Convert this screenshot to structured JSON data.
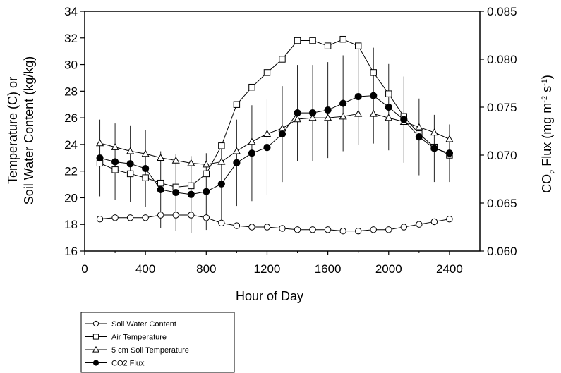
{
  "chart_data": {
    "type": "line",
    "xlabel": "Hour of Day",
    "ylabel_left_line1": "Temperature (C) or",
    "ylabel_left_line2": "Soil Water Content (kg/kg)",
    "ylabel_right": "CO2 Flux (mg m-2 s-1)",
    "xlim": [
      0,
      2600
    ],
    "ylim_left": [
      16,
      34
    ],
    "ylim_right": [
      0.06,
      0.085
    ],
    "x_ticks": [
      0,
      400,
      800,
      1200,
      1600,
      2000,
      2400
    ],
    "x_tick_labels": [
      "0",
      "400",
      "800",
      "1200",
      "1600",
      "2000",
      "2400"
    ],
    "y_left_ticks": [
      16,
      18,
      20,
      22,
      24,
      26,
      28,
      30,
      32,
      34
    ],
    "y_left_tick_labels": [
      "16",
      "18",
      "20",
      "22",
      "24",
      "26",
      "28",
      "30",
      "32",
      "34"
    ],
    "y_right_ticks": [
      0.06,
      0.065,
      0.07,
      0.075,
      0.08,
      0.085
    ],
    "y_right_tick_labels": [
      "0.060",
      "0.065",
      "0.070",
      "0.075",
      "0.080",
      "0.085"
    ],
    "x": [
      100,
      200,
      300,
      400,
      500,
      600,
      700,
      800,
      900,
      1000,
      1100,
      1200,
      1300,
      1400,
      1500,
      1600,
      1700,
      1800,
      1900,
      2000,
      2100,
      2200,
      2300,
      2400
    ],
    "series": [
      {
        "name": "Soil Water Content",
        "marker": "circle-open",
        "axis": "left",
        "values": [
          18.4,
          18.5,
          18.5,
          18.5,
          18.7,
          18.7,
          18.7,
          18.5,
          18.1,
          17.9,
          17.8,
          17.8,
          17.7,
          17.6,
          17.6,
          17.6,
          17.5,
          17.5,
          17.6,
          17.6,
          17.8,
          18.0,
          18.2,
          18.4
        ]
      },
      {
        "name": "Air Temperature",
        "marker": "square-open",
        "axis": "left",
        "values": [
          22.6,
          22.1,
          21.8,
          21.5,
          21.1,
          20.8,
          20.9,
          21.8,
          23.9,
          27.0,
          28.3,
          29.4,
          30.4,
          31.8,
          31.8,
          31.4,
          31.9,
          31.4,
          29.4,
          27.8,
          26.1,
          24.8,
          23.8,
          23.2
        ]
      },
      {
        "name": "5 cm Soil Temperature",
        "marker": "triangle-open",
        "axis": "left",
        "values": [
          24.1,
          23.8,
          23.5,
          23.3,
          23.0,
          22.8,
          22.6,
          22.5,
          22.7,
          23.5,
          24.2,
          24.8,
          25.2,
          25.9,
          26.0,
          26.0,
          26.1,
          26.3,
          26.3,
          26.0,
          25.7,
          25.3,
          24.9,
          24.4
        ]
      },
      {
        "name": "CO2 Flux",
        "marker": "circle-filled",
        "axis": "right",
        "values": [
          0.0697,
          0.0693,
          0.0691,
          0.0686,
          0.0664,
          0.0661,
          0.0659,
          0.0662,
          0.067,
          0.0692,
          0.0702,
          0.0708,
          0.0722,
          0.0744,
          0.0744,
          0.0747,
          0.0754,
          0.0761,
          0.0762,
          0.075,
          0.0737,
          0.0719,
          0.0707,
          0.0702
        ],
        "errors": [
          0.004,
          0.004,
          0.004,
          0.004,
          0.004,
          0.004,
          0.004,
          0.004,
          0.004,
          0.0045,
          0.005,
          0.005,
          0.005,
          0.005,
          0.005,
          0.005,
          0.005,
          0.005,
          0.005,
          0.0045,
          0.0045,
          0.004,
          0.0035,
          0.003
        ]
      }
    ],
    "legend_position": "bottom-left"
  }
}
